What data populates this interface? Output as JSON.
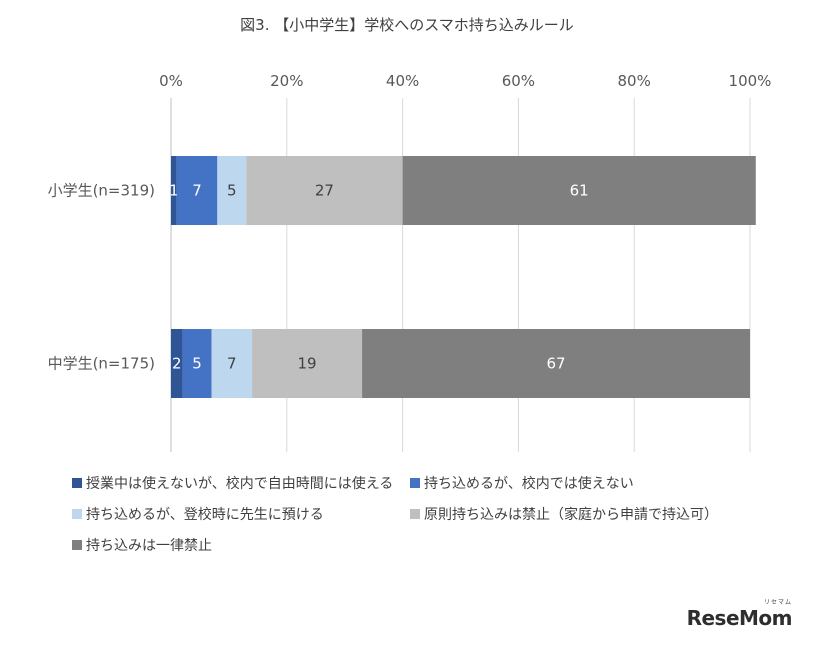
{
  "chart_data": {
    "type": "bar",
    "orientation": "horizontal",
    "stacked": true,
    "percent": true,
    "title": "図3. 【小中学生】学校へのスマホ持ち込みルール",
    "xlabel": "",
    "ylabel": "",
    "xlim": [
      0,
      100
    ],
    "x_ticks": [
      "0%",
      "20%",
      "40%",
      "60%",
      "80%",
      "100%"
    ],
    "grid": "vertical",
    "legend_position": "bottom",
    "categories": [
      "小学生(n=319)",
      "中学生(n=175)"
    ],
    "series": [
      {
        "name": "授業中は使えないが、校内で自由時間には使える",
        "color": "#2f5597",
        "values": [
          1,
          2
        ],
        "label_color": "#ffffff"
      },
      {
        "name": "持ち込めるが、校内では使えない",
        "color": "#4472c4",
        "values": [
          7,
          5
        ],
        "label_color": "#ffffff"
      },
      {
        "name": "持ち込めるが、登校時に先生に預ける",
        "color": "#bdd7ee",
        "values": [
          5,
          7
        ],
        "label_color": "#404040"
      },
      {
        "name": "原則持ち込みは禁止（家庭から申請で持込可）",
        "color": "#bfbfbf",
        "values": [
          27,
          19
        ],
        "label_color": "#404040"
      },
      {
        "name": "持ち込みは一律禁止",
        "color": "#7f7f7f",
        "values": [
          61,
          67
        ],
        "label_color": "#ffffff"
      }
    ]
  },
  "logo": {
    "text": "ReseMom",
    "ruby": "リセマム"
  }
}
